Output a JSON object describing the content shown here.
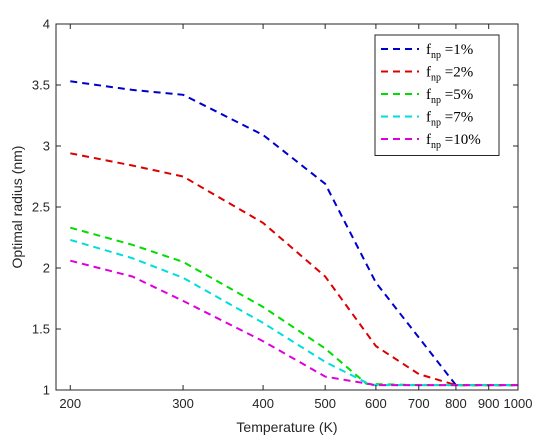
{
  "chart_data": {
    "type": "line",
    "title": "",
    "xlabel": "Temperature (K)",
    "ylabel": "Optimal radius (nm)",
    "x_scale": "log",
    "xlim": [
      190,
      1000
    ],
    "ylim": [
      1,
      4
    ],
    "xticks": [
      200,
      300,
      400,
      500,
      600,
      700,
      800,
      900,
      1000
    ],
    "xtick_labels": [
      "200",
      "300",
      "400",
      "500",
      "600",
      "700",
      "800",
      "900",
      "1000"
    ],
    "yticks": [
      1,
      1.5,
      2,
      2.5,
      3,
      3.5,
      4
    ],
    "ytick_labels": [
      "1",
      "1.5",
      "2",
      "2.5",
      "3",
      "3.5",
      "4"
    ],
    "grid": false,
    "legend_position": "top-right",
    "line_style": "dashed",
    "series": [
      {
        "name_main": "f",
        "name_sub": "np",
        "name_rest": " =1%",
        "color": "#0000cc",
        "x": [
          200,
          250,
          300,
          400,
          500,
          600,
          700,
          800,
          1000
        ],
        "y": [
          3.53,
          3.46,
          3.42,
          3.09,
          2.69,
          1.88,
          1.43,
          1.04,
          1.04
        ]
      },
      {
        "name_main": "f",
        "name_sub": "np",
        "name_rest": " =2%",
        "color": "#dd0000",
        "x": [
          200,
          250,
          300,
          400,
          500,
          600,
          700,
          800,
          1000
        ],
        "y": [
          2.94,
          2.84,
          2.75,
          2.37,
          1.93,
          1.36,
          1.13,
          1.04,
          1.04
        ]
      },
      {
        "name_main": "f",
        "name_sub": "np",
        "name_rest": " =5%",
        "color": "#00dd00",
        "x": [
          200,
          250,
          300,
          400,
          500,
          580,
          700,
          800,
          1000
        ],
        "y": [
          2.33,
          2.19,
          2.05,
          1.68,
          1.34,
          1.05,
          1.04,
          1.04,
          1.04
        ]
      },
      {
        "name_main": "f",
        "name_sub": "np",
        "name_rest": " =7%",
        "color": "#00dddd",
        "x": [
          200,
          250,
          300,
          400,
          500,
          590,
          700,
          800,
          1000
        ],
        "y": [
          2.23,
          2.08,
          1.92,
          1.55,
          1.23,
          1.04,
          1.04,
          1.04,
          1.04
        ]
      },
      {
        "name_main": "f",
        "name_sub": "np",
        "name_rest": " =10%",
        "color": "#dd00dd",
        "x": [
          200,
          250,
          300,
          400,
          500,
          600,
          700,
          800,
          1000
        ],
        "y": [
          2.06,
          1.93,
          1.73,
          1.4,
          1.11,
          1.04,
          1.04,
          1.04,
          1.04
        ]
      }
    ]
  }
}
